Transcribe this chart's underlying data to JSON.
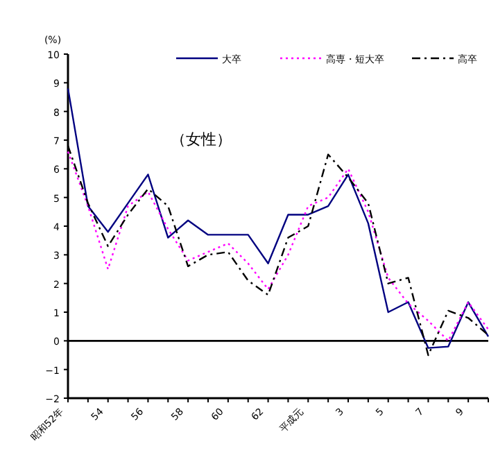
{
  "chart_data": {
    "type": "line",
    "ylabel": "(%)",
    "annotations": [
      "（女性）"
    ],
    "categories": [
      "昭和52年",
      null,
      "54",
      null,
      "56",
      null,
      "58",
      null,
      "60",
      null,
      "62",
      null,
      "平成元",
      null,
      "3",
      null,
      "5",
      null,
      "7",
      null,
      "9",
      null
    ],
    "series": [
      {
        "name": "大卒",
        "color": "#000080",
        "line_style": "solid",
        "values": [
          8.8,
          4.7,
          3.8,
          4.8,
          5.8,
          3.6,
          4.2,
          3.7,
          3.7,
          3.7,
          2.7,
          4.4,
          4.4,
          4.7,
          5.8,
          4.1,
          1.0,
          1.35,
          -0.25,
          -0.2,
          1.35,
          0.15
        ]
      },
      {
        "name": "高専・短大卒",
        "color": "#ff00ff",
        "line_style": "dotted",
        "values": [
          6.6,
          4.7,
          2.5,
          4.7,
          5.2,
          3.9,
          2.8,
          3.1,
          3.4,
          2.7,
          1.8,
          3.0,
          4.7,
          5.0,
          6.0,
          4.5,
          2.2,
          1.3,
          0.7,
          0.0,
          1.35,
          0.4
        ]
      },
      {
        "name": "高卒",
        "color": "#000000",
        "line_style": "dashdot",
        "values": [
          6.8,
          4.8,
          3.3,
          4.4,
          5.3,
          4.7,
          2.6,
          3.0,
          3.1,
          2.1,
          1.6,
          3.6,
          4.0,
          6.5,
          5.7,
          4.8,
          2.0,
          2.2,
          -0.5,
          1.05,
          0.8,
          0.2
        ]
      }
    ],
    "ylim": [
      -2,
      10
    ],
    "yticks": [
      -2,
      -1,
      0,
      1,
      2,
      3,
      4,
      5,
      6,
      7,
      8,
      9,
      10
    ],
    "ref_lines": [
      {
        "axis": "y",
        "value": 0,
        "color": "#000000"
      }
    ],
    "legend": "top right"
  }
}
